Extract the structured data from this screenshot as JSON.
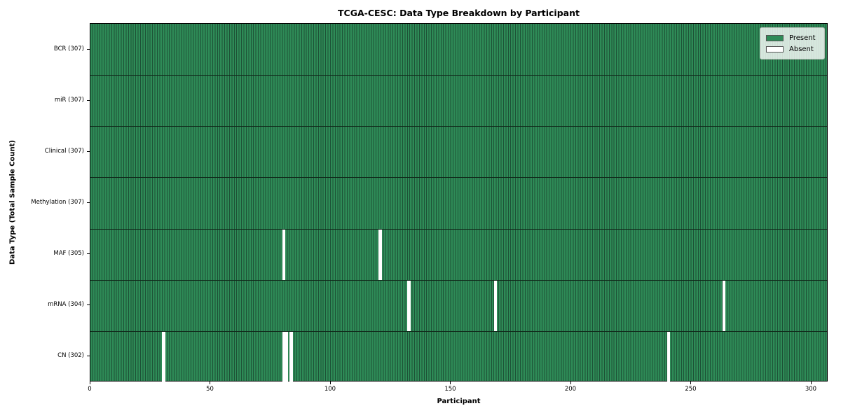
{
  "chart_data": {
    "type": "heatmap",
    "title": "TCGA-CESC: Data Type Breakdown by Participant",
    "xlabel": "Participant",
    "ylabel": "Data Type (Total Sample Count)",
    "n_participants": 307,
    "x_ticks": [
      0,
      50,
      100,
      150,
      200,
      250,
      300
    ],
    "xlim": [
      0,
      307
    ],
    "grid": false,
    "legend_position": "upper right",
    "rows": [
      {
        "label": "BCR (307)",
        "data_type": "BCR",
        "total_sample_count": 307,
        "absent_participants": []
      },
      {
        "label": "miR (307)",
        "data_type": "miR",
        "total_sample_count": 307,
        "absent_participants": []
      },
      {
        "label": "Clinical (307)",
        "data_type": "Clinical",
        "total_sample_count": 307,
        "absent_participants": []
      },
      {
        "label": "Methylation (307)",
        "data_type": "Methylation",
        "total_sample_count": 307,
        "absent_participants": []
      },
      {
        "label": "MAF (305)",
        "data_type": "MAF",
        "total_sample_count": 305,
        "absent_participants": [
          80,
          120
        ]
      },
      {
        "label": "mRNA (304)",
        "data_type": "mRNA",
        "total_sample_count": 304,
        "absent_participants": [
          132,
          168,
          263
        ]
      },
      {
        "label": "CN (302)",
        "data_type": "CN",
        "total_sample_count": 302,
        "absent_participants": [
          30,
          80,
          81,
          83,
          240
        ]
      }
    ],
    "legend": [
      {
        "label": "Present",
        "color": "#2e8b57"
      },
      {
        "label": "Absent",
        "color": "#ffffff"
      }
    ],
    "colors": {
      "present": "#2e8b57",
      "absent": "#ffffff",
      "cell_border": "#1d5136",
      "row_separator": "#10281a",
      "plot_border": "#000000"
    }
  }
}
